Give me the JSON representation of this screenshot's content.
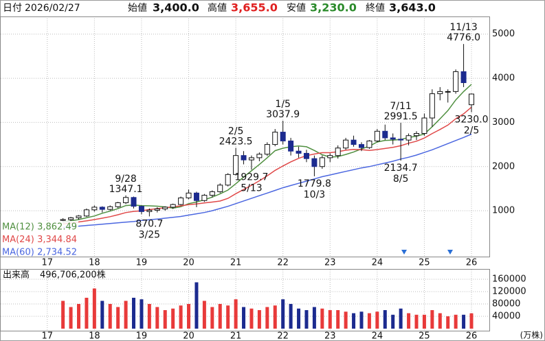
{
  "header": {
    "date_label": "日付",
    "date": "2026/02/27",
    "open_label": "始値",
    "high_label": "高値",
    "low_label": "安値",
    "close_label": "終値"
  },
  "chart_data": {
    "type": "candlestick",
    "open": [
      780,
      800,
      840,
      880,
      1020,
      1080,
      1030,
      1090,
      1180,
      1300,
      1100,
      980,
      1010,
      1040,
      1080,
      1140,
      1290,
      1400,
      1230,
      1350,
      1430,
      1580,
      1820,
      2250,
      2150,
      2200,
      2280,
      2500,
      2780,
      2580,
      2350,
      2300,
      2180,
      2000,
      2200,
      2250,
      2420,
      2600,
      2500,
      2430,
      2580,
      2800,
      2650,
      2620,
      2600,
      2700,
      2750,
      3100,
      3650,
      3700,
      3700,
      4150,
      3400
    ],
    "high": [
      830,
      860,
      900,
      1050,
      1120,
      1100,
      1120,
      1200,
      1347.1,
      1320,
      1120,
      1050,
      1080,
      1100,
      1160,
      1320,
      1480,
      1430,
      1380,
      1460,
      1620,
      1850,
      2423.5,
      2350,
      2250,
      2320,
      2550,
      2850,
      3037.9,
      2650,
      2450,
      2380,
      2250,
      2250,
      2300,
      2480,
      2650,
      2700,
      2550,
      2600,
      2850,
      2950,
      2750,
      2991.5,
      2750,
      2800,
      3200,
      3750,
      3800,
      3750,
      4200,
      4776.0,
      3655.0
    ],
    "low": [
      740,
      760,
      800,
      860,
      980,
      960,
      1000,
      1060,
      1150,
      1050,
      920,
      870.7,
      960,
      1000,
      1040,
      1120,
      1260,
      1080,
      1200,
      1300,
      1400,
      1550,
      1800,
      2050,
      1929.7,
      2120,
      2240,
      2460,
      2500,
      2250,
      2200,
      2100,
      1779.8,
      1950,
      2100,
      2180,
      2380,
      2450,
      2350,
      2400,
      2550,
      2600,
      2500,
      2134.7,
      2480,
      2600,
      2700,
      2900,
      3500,
      3450,
      3650,
      3800,
      3230.0
    ],
    "close": [
      800,
      840,
      880,
      1020,
      1080,
      1030,
      1090,
      1180,
      1300,
      1100,
      980,
      1010,
      1040,
      1080,
      1140,
      1290,
      1400,
      1230,
      1350,
      1430,
      1580,
      1820,
      2250,
      2150,
      2200,
      2280,
      2500,
      2780,
      2580,
      2350,
      2300,
      2180,
      2000,
      2200,
      2250,
      2420,
      2600,
      2500,
      2430,
      2580,
      2800,
      2650,
      2620,
      2600,
      2700,
      2750,
      3100,
      3650,
      3700,
      3700,
      4150,
      3900,
      3643.0
    ],
    "last_labels": {
      "open": "3,400.0",
      "high": "3,655.0",
      "low": "3,230.0",
      "close": "3,643.0"
    },
    "high_dates": [
      null,
      null,
      null,
      null,
      null,
      null,
      null,
      null,
      "9/28",
      null,
      null,
      null,
      null,
      null,
      null,
      null,
      null,
      null,
      null,
      null,
      null,
      null,
      "2/5",
      null,
      null,
      null,
      null,
      null,
      "1/5",
      null,
      null,
      null,
      null,
      null,
      null,
      null,
      null,
      null,
      null,
      null,
      null,
      null,
      null,
      "7/11",
      null,
      null,
      null,
      null,
      null,
      null,
      null,
      "11/13",
      null
    ],
    "high_labels": [
      null,
      null,
      null,
      null,
      null,
      null,
      null,
      null,
      "1347.1",
      null,
      null,
      null,
      null,
      null,
      null,
      null,
      null,
      null,
      null,
      null,
      null,
      null,
      "2423.5",
      null,
      null,
      null,
      null,
      null,
      "3037.9",
      null,
      null,
      null,
      null,
      null,
      null,
      null,
      null,
      null,
      null,
      null,
      null,
      null,
      null,
      "2991.5",
      null,
      null,
      null,
      null,
      null,
      null,
      null,
      "4776.0",
      null
    ],
    "low_labels": [
      null,
      null,
      null,
      null,
      null,
      null,
      null,
      null,
      null,
      null,
      null,
      "870.7",
      null,
      null,
      null,
      null,
      null,
      null,
      null,
      null,
      null,
      null,
      null,
      null,
      "1929.7",
      null,
      null,
      null,
      null,
      null,
      null,
      null,
      "1779.8",
      null,
      null,
      null,
      null,
      null,
      null,
      null,
      null,
      null,
      null,
      "2134.7",
      null,
      null,
      null,
      null,
      null,
      null,
      null,
      null,
      "3230.0"
    ],
    "low_dates": [
      null,
      null,
      null,
      null,
      null,
      null,
      null,
      null,
      null,
      null,
      null,
      "3/25",
      null,
      null,
      null,
      null,
      null,
      null,
      null,
      null,
      null,
      null,
      null,
      null,
      "5/13",
      null,
      null,
      null,
      null,
      null,
      null,
      null,
      "10/3",
      null,
      null,
      null,
      null,
      null,
      null,
      null,
      null,
      null,
      null,
      "8/5",
      null,
      null,
      null,
      null,
      null,
      null,
      null,
      null,
      "2/5"
    ],
    "up_color": "#ffffff",
    "down_color": "#1c2b8f",
    "ylim": [
      -40,
      5400
    ],
    "yticks": [
      1000,
      2000,
      3000,
      4000,
      5000
    ],
    "grid": true,
    "xticks": [
      17,
      18,
      19,
      20,
      21,
      22,
      23,
      24,
      25,
      26
    ],
    "ma": [
      {
        "name": "MA(12)",
        "color": "#4f8f3f",
        "last_label": "3,862.49",
        "values": [
          740,
          770,
          800,
          840,
          880,
          942,
          990,
          1047,
          1117,
          1130,
          1113,
          1110,
          1102,
          1085,
          1058,
          1090,
          1160,
          1197,
          1248,
          1307,
          1380,
          1468,
          1610,
          1763,
          1905,
          2047,
          2200,
          2360,
          2415,
          2448,
          2465,
          2448,
          2365,
          2268,
          2213,
          2225,
          2275,
          2328,
          2400,
          2463,
          2555,
          2593,
          2597,
          2613,
          2658,
          2687,
          2737,
          2903,
          3083,
          3267,
          3508,
          3700,
          3862.49
        ]
      },
      {
        "name": "MA(24)",
        "color": "#e04848",
        "last_label": "3,344.84",
        "values": [
          700,
          720,
          745,
          770,
          800,
          830,
          865,
          908,
          958,
          985,
          997,
          1026,
          1046,
          1066,
          1088,
          1110,
          1137,
          1154,
          1175,
          1196,
          1219,
          1279,
          1385,
          1480,
          1577,
          1677,
          1790,
          1914,
          2013,
          2106,
          2185,
          2248,
          2283,
          2314,
          2314,
          2337,
          2370,
          2388,
          2383,
          2366,
          2384,
          2409,
          2436,
          2471,
          2529,
          2575,
          2646,
          2748,
          2840,
          2940,
          3083,
          3194,
          3344.84
        ]
      },
      {
        "name": "MA(60)",
        "color": "#4a66e0",
        "last_label": "2,734.52",
        "values": [
          620,
          635,
          650,
          665,
          680,
          695,
          710,
          725,
          740,
          755,
          780,
          795,
          810,
          830,
          850,
          870,
          900,
          930,
          960,
          1000,
          1050,
          1100,
          1160,
          1220,
          1280,
          1340,
          1400,
          1460,
          1520,
          1570,
          1620,
          1670,
          1720,
          1770,
          1810,
          1850,
          1890,
          1930,
          1970,
          2000,
          2040,
          2080,
          2120,
          2170,
          2210,
          2260,
          2320,
          2380,
          2450,
          2520,
          2590,
          2660,
          2734.52
        ]
      }
    ],
    "volume": {
      "label": "出来高",
      "total_label": "496,706,200株",
      "unit": "(万株)",
      "values": [
        90000,
        70000,
        80000,
        100000,
        130000,
        90000,
        80000,
        70000,
        90000,
        100000,
        95000,
        80000,
        70000,
        60000,
        65000,
        75000,
        80000,
        150000,
        90000,
        70000,
        80000,
        75000,
        95000,
        70000,
        65000,
        60000,
        70000,
        75000,
        95000,
        80000,
        65000,
        60000,
        70000,
        65000,
        60000,
        60000,
        55000,
        50000,
        55000,
        50000,
        55000,
        60000,
        45000,
        65000,
        50000,
        45000,
        45000,
        60000,
        50000,
        40000,
        45000,
        45000,
        49670.62
      ],
      "ylim": [
        0,
        191000
      ],
      "yticks": [
        40000,
        80000,
        120000,
        160000
      ],
      "up_color": "#e83a3a",
      "down_color": "#1c2b8f"
    }
  }
}
